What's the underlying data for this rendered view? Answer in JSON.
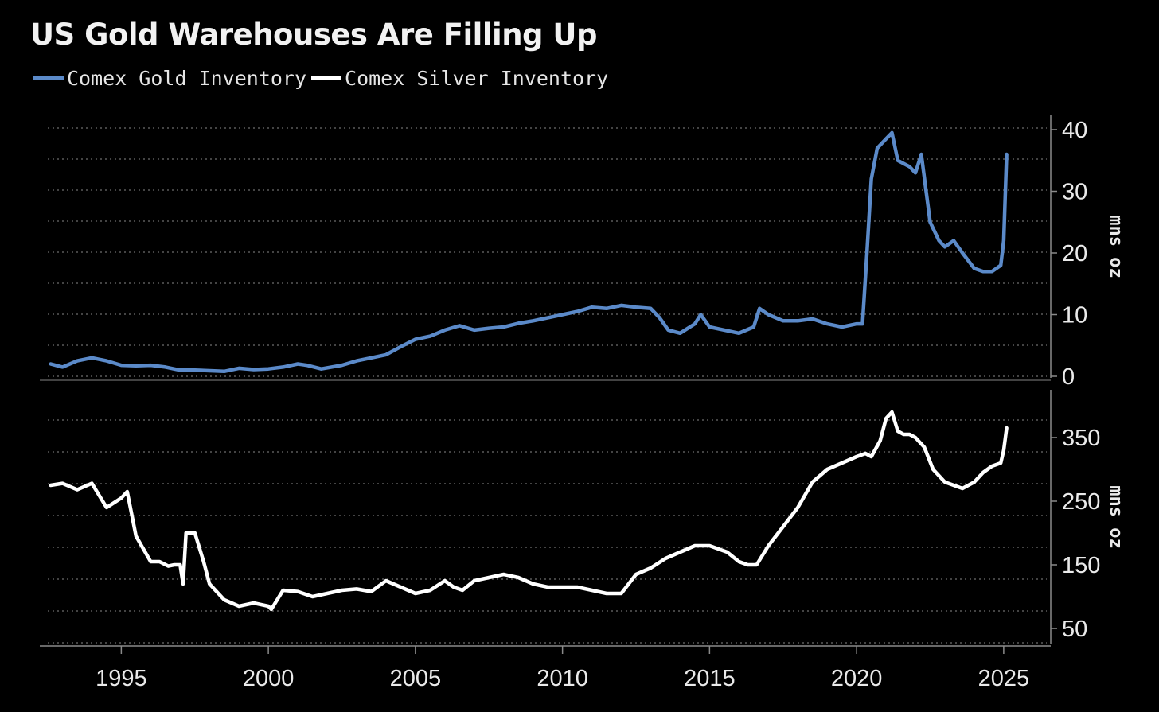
{
  "title": "US Gold Warehouses Are Filling Up",
  "legend": [
    {
      "label": "Comex Gold Inventory",
      "color": "#5b8ac9"
    },
    {
      "label": "Comex Silver Inventory",
      "color": "#ffffff"
    }
  ],
  "chart_data": [
    {
      "type": "line",
      "series": [
        {
          "name": "Comex Gold Inventory",
          "color": "#5b8ac9",
          "x": [
            1992.6,
            1993.0,
            1993.5,
            1994.0,
            1994.5,
            1995.0,
            1995.5,
            1996.0,
            1996.5,
            1997.0,
            1997.5,
            1998.0,
            1998.5,
            1999.0,
            1999.5,
            2000.0,
            2000.5,
            2001.0,
            2001.3,
            2001.8,
            2002.5,
            2003.0,
            2003.5,
            2004.0,
            2004.5,
            2005.0,
            2005.5,
            2006.0,
            2006.5,
            2007.0,
            2007.5,
            2008.0,
            2008.5,
            2009.0,
            2009.5,
            2010.0,
            2010.5,
            2011.0,
            2011.5,
            2012.0,
            2012.5,
            2013.0,
            2013.3,
            2013.6,
            2014.0,
            2014.5,
            2014.7,
            2015.0,
            2015.5,
            2016.0,
            2016.5,
            2016.7,
            2017.0,
            2017.5,
            2018.0,
            2018.5,
            2019.0,
            2019.5,
            2020.0,
            2020.2,
            2020.35,
            2020.5,
            2020.7,
            2021.0,
            2021.2,
            2021.4,
            2021.6,
            2021.8,
            2022.0,
            2022.2,
            2022.5,
            2022.8,
            2023.0,
            2023.3,
            2023.6,
            2024.0,
            2024.3,
            2024.6,
            2024.9,
            2025.0,
            2025.1
          ],
          "values": [
            2.0,
            1.5,
            2.5,
            3.0,
            2.5,
            1.8,
            1.7,
            1.8,
            1.5,
            1.0,
            1.0,
            0.9,
            0.8,
            1.3,
            1.1,
            1.2,
            1.5,
            2.0,
            1.8,
            1.2,
            1.8,
            2.5,
            3.0,
            3.5,
            4.8,
            6.0,
            6.5,
            7.5,
            8.2,
            7.5,
            7.8,
            8.0,
            8.6,
            9.0,
            9.5,
            10.0,
            10.5,
            11.2,
            11.0,
            11.5,
            11.2,
            11.0,
            9.5,
            7.5,
            7.0,
            8.5,
            10.0,
            8.0,
            7.5,
            7.0,
            8.0,
            11.0,
            10.0,
            9.0,
            9.0,
            9.3,
            8.5,
            8.0,
            8.5,
            8.5,
            20.0,
            32.0,
            37.0,
            38.5,
            39.5,
            35.0,
            34.5,
            34.0,
            33.0,
            36.0,
            25.0,
            22.0,
            21.0,
            22.0,
            20.0,
            17.5,
            17.0,
            17.0,
            18.0,
            22.0,
            36.0
          ]
        }
      ],
      "ylabel": "mns oz",
      "ylim": [
        0,
        40
      ],
      "yticks": [
        "40",
        "30",
        "20",
        "10",
        "0"
      ],
      "grid": true
    },
    {
      "type": "line",
      "series": [
        {
          "name": "Comex Silver Inventory",
          "color": "#ffffff",
          "x": [
            1992.6,
            1993.0,
            1993.5,
            1994.0,
            1994.5,
            1995.0,
            1995.2,
            1995.5,
            1996.0,
            1996.3,
            1996.6,
            1996.8,
            1997.0,
            1997.1,
            1997.2,
            1997.5,
            1997.8,
            1998.0,
            1998.5,
            1999.0,
            1999.5,
            2000.0,
            2000.1,
            2000.5,
            2001.0,
            2001.5,
            2002.0,
            2002.5,
            2003.0,
            2003.5,
            2004.0,
            2004.5,
            2005.0,
            2005.5,
            2006.0,
            2006.3,
            2006.6,
            2007.0,
            2007.5,
            2008.0,
            2008.5,
            2009.0,
            2009.5,
            2010.0,
            2010.5,
            2011.0,
            2011.5,
            2012.0,
            2012.5,
            2013.0,
            2013.5,
            2014.0,
            2014.5,
            2015.0,
            2015.3,
            2015.6,
            2016.0,
            2016.3,
            2016.6,
            2017.0,
            2017.5,
            2018.0,
            2018.5,
            2019.0,
            2019.5,
            2020.0,
            2020.3,
            2020.5,
            2020.8,
            2021.0,
            2021.2,
            2021.4,
            2021.6,
            2021.8,
            2022.0,
            2022.3,
            2022.6,
            2023.0,
            2023.3,
            2023.6,
            2024.0,
            2024.3,
            2024.6,
            2024.9,
            2025.0,
            2025.1
          ],
          "values": [
            275,
            278,
            268,
            278,
            240,
            255,
            265,
            195,
            155,
            155,
            148,
            150,
            150,
            120,
            200,
            200,
            155,
            120,
            95,
            85,
            90,
            85,
            80,
            110,
            108,
            100,
            105,
            110,
            112,
            108,
            125,
            115,
            105,
            110,
            125,
            115,
            110,
            125,
            130,
            135,
            130,
            120,
            115,
            115,
            115,
            110,
            105,
            105,
            135,
            145,
            160,
            170,
            180,
            180,
            175,
            170,
            155,
            150,
            150,
            180,
            210,
            240,
            280,
            300,
            310,
            320,
            325,
            320,
            345,
            380,
            390,
            360,
            355,
            355,
            350,
            335,
            300,
            280,
            275,
            270,
            280,
            295,
            305,
            310,
            330,
            365
          ]
        }
      ],
      "ylabel": "mns oz",
      "ylim": [
        25,
        410
      ],
      "yticks": [
        "350",
        "250",
        "150",
        "50"
      ],
      "grid": true
    }
  ],
  "x_axis": {
    "ticks": [
      "1995",
      "2000",
      "2005",
      "2010",
      "2015",
      "2020",
      "2025"
    ],
    "xlim": [
      1992.5,
      2026.6
    ]
  }
}
